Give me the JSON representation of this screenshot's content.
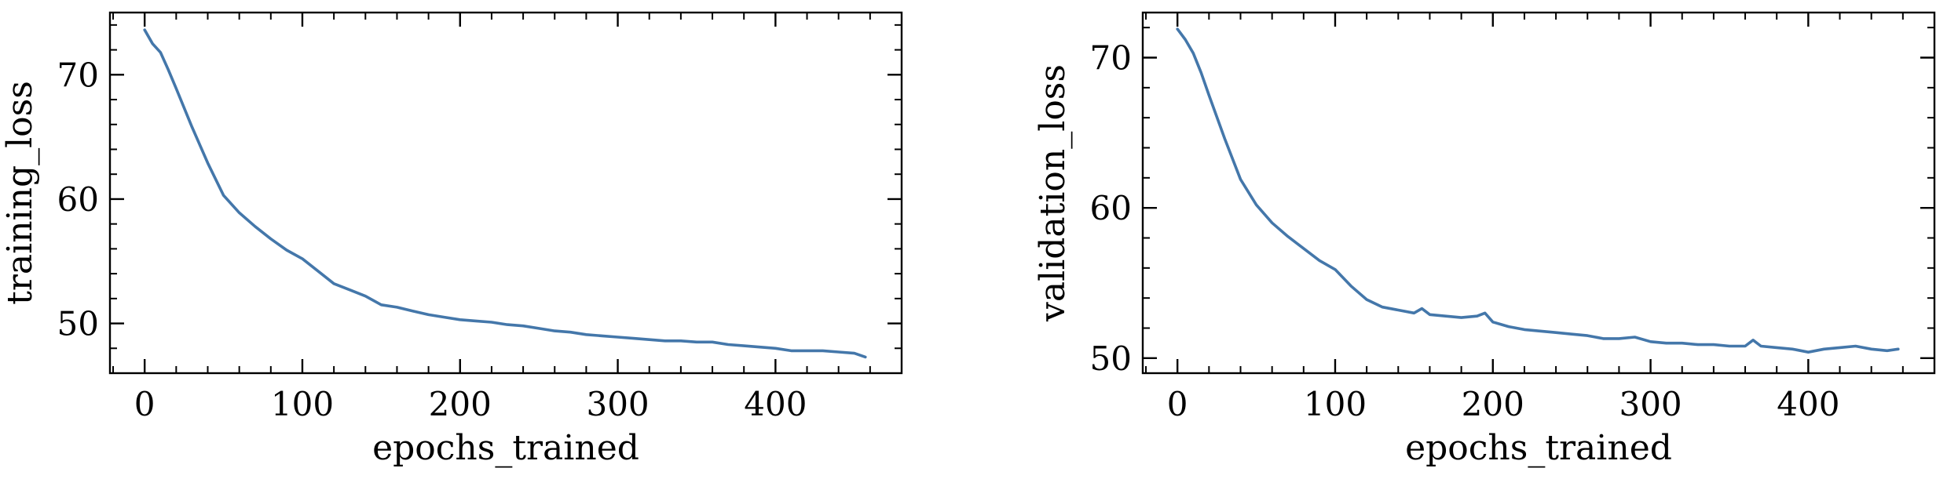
{
  "figure": {
    "line_color": "#4477aa"
  },
  "chart_data": [
    {
      "type": "line",
      "title": "",
      "xlabel": "epochs_trained",
      "ylabel": "training_loss",
      "xlim": [
        -22,
        480
      ],
      "ylim": [
        46,
        75
      ],
      "xticks": [
        0,
        100,
        200,
        300,
        400
      ],
      "xtick_labels": [
        "0",
        "100",
        "200",
        "300",
        "400"
      ],
      "yticks": [
        50,
        60,
        70
      ],
      "ytick_labels": [
        "50",
        "60",
        "70"
      ],
      "grid": false,
      "series": [
        {
          "x": [
            0,
            5,
            10,
            15,
            20,
            30,
            40,
            50,
            60,
            70,
            80,
            90,
            100,
            110,
            120,
            130,
            140,
            150,
            160,
            170,
            180,
            190,
            200,
            210,
            220,
            230,
            240,
            250,
            260,
            270,
            280,
            290,
            300,
            310,
            320,
            330,
            340,
            350,
            360,
            370,
            380,
            390,
            400,
            410,
            420,
            430,
            440,
            450,
            457
          ],
          "y": [
            73.6,
            72.5,
            71.8,
            70.4,
            68.9,
            65.8,
            62.9,
            60.3,
            58.9,
            57.8,
            56.8,
            55.9,
            55.2,
            54.2,
            53.2,
            52.7,
            52.2,
            51.5,
            51.3,
            51.0,
            50.7,
            50.5,
            50.3,
            50.2,
            50.1,
            49.9,
            49.8,
            49.6,
            49.4,
            49.3,
            49.1,
            49.0,
            48.9,
            48.8,
            48.7,
            48.6,
            48.6,
            48.5,
            48.5,
            48.3,
            48.2,
            48.1,
            48.0,
            47.8,
            47.8,
            47.8,
            47.7,
            47.6,
            47.3
          ]
        }
      ]
    },
    {
      "type": "line",
      "title": "",
      "xlabel": "epochs_trained",
      "ylabel": "validation_loss",
      "xlim": [
        -22,
        480
      ],
      "ylim": [
        49,
        73
      ],
      "xticks": [
        0,
        100,
        200,
        300,
        400
      ],
      "xtick_labels": [
        "0",
        "100",
        "200",
        "300",
        "400"
      ],
      "yticks": [
        50,
        60,
        70
      ],
      "ytick_labels": [
        "50",
        "60",
        "70"
      ],
      "grid": false,
      "series": [
        {
          "x": [
            0,
            5,
            10,
            15,
            20,
            30,
            40,
            50,
            60,
            70,
            80,
            90,
            100,
            110,
            120,
            130,
            140,
            150,
            155,
            160,
            170,
            180,
            190,
            195,
            200,
            210,
            220,
            230,
            240,
            250,
            260,
            270,
            280,
            290,
            300,
            310,
            320,
            330,
            340,
            350,
            360,
            365,
            370,
            380,
            390,
            400,
            410,
            420,
            430,
            440,
            450,
            457
          ],
          "y": [
            71.9,
            71.2,
            70.3,
            69.0,
            67.5,
            64.6,
            61.9,
            60.2,
            59.0,
            58.1,
            57.3,
            56.5,
            55.9,
            54.8,
            53.9,
            53.4,
            53.2,
            53.0,
            53.3,
            52.9,
            52.8,
            52.7,
            52.8,
            53.0,
            52.4,
            52.1,
            51.9,
            51.8,
            51.7,
            51.6,
            51.5,
            51.3,
            51.3,
            51.4,
            51.1,
            51.0,
            51.0,
            50.9,
            50.9,
            50.8,
            50.8,
            51.2,
            50.8,
            50.7,
            50.6,
            50.4,
            50.6,
            50.7,
            50.8,
            50.6,
            50.5,
            50.6
          ]
        }
      ]
    }
  ]
}
